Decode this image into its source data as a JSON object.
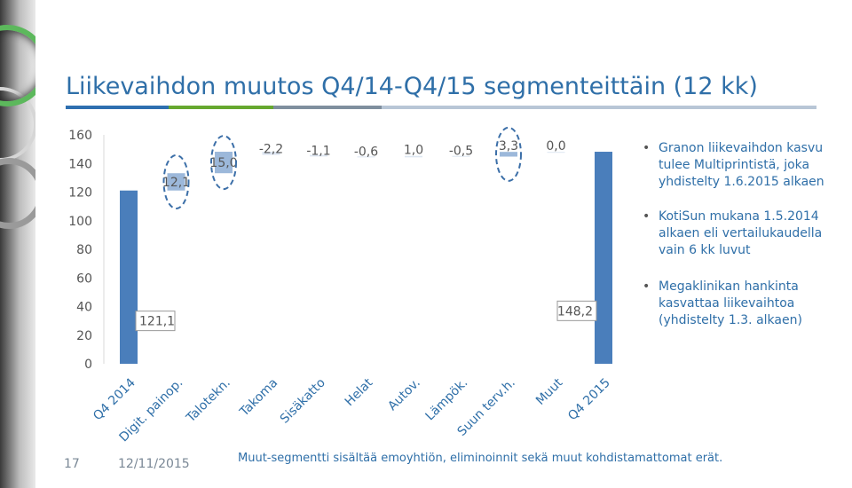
{
  "slide": {
    "title": "Liikevaihdon muutos Q4/14-Q4/15 segmenteittäin (12 kk)",
    "page_number": "17",
    "date": "12/11/2015",
    "footnote": "Muut-segmentti sisältää emoyhtiön, eliminoinnit sekä muut kohdistamattomat erät.",
    "bullets": [
      "Granon liikevaihdon kasvu tulee Multiprintistä, joka yhdistelty 1.6.2015 alkaen",
      "KotiSun mukana 1.5.2014 alkaen eli vertailukaudella vain 6 kk luvut",
      "Megaklinikan hankinta kasvattaa liikevaihtoa (yhdistelty 1.3. alkaen)"
    ],
    "rule_colors": [
      "#2e6fb0",
      "#66a82f",
      "#7f8f9e",
      "#b8c6d6"
    ]
  },
  "chart_data": {
    "type": "bar",
    "subtype": "waterfall",
    "categories": [
      "Q4 2014",
      "Digit. painop.",
      "Talotekn.",
      "Takoma",
      "Sisäkatto",
      "Helat",
      "Autov.",
      "Lämpök.",
      "Suun terv.h.",
      "Muut",
      "Q4 2015"
    ],
    "values": [
      121.1,
      12.1,
      15.0,
      -2.2,
      -1.1,
      -0.6,
      1.0,
      -0.5,
      3.3,
      0.0,
      148.2
    ],
    "value_labels": [
      "121,1",
      "12,1",
      "15,0",
      "-2,2",
      "-1,1",
      "-0,6",
      "1,0",
      "-0,5",
      "3,3",
      "0,0",
      "148,2"
    ],
    "bar_kind": [
      "total",
      "delta",
      "delta",
      "delta",
      "delta",
      "delta",
      "delta",
      "delta",
      "delta",
      "delta",
      "total"
    ],
    "highlighted": [
      "Digit. painop.",
      "Talotekn.",
      "Suun terv.h."
    ],
    "y_ticks": [
      0,
      20,
      40,
      60,
      80,
      100,
      120,
      140,
      160
    ],
    "ylim": [
      0,
      160
    ],
    "grid": false,
    "colors": {
      "total": "#4a7ebb",
      "delta": "#9fb7d9",
      "highlight": "#4a7ebb",
      "text": "#555555"
    }
  }
}
